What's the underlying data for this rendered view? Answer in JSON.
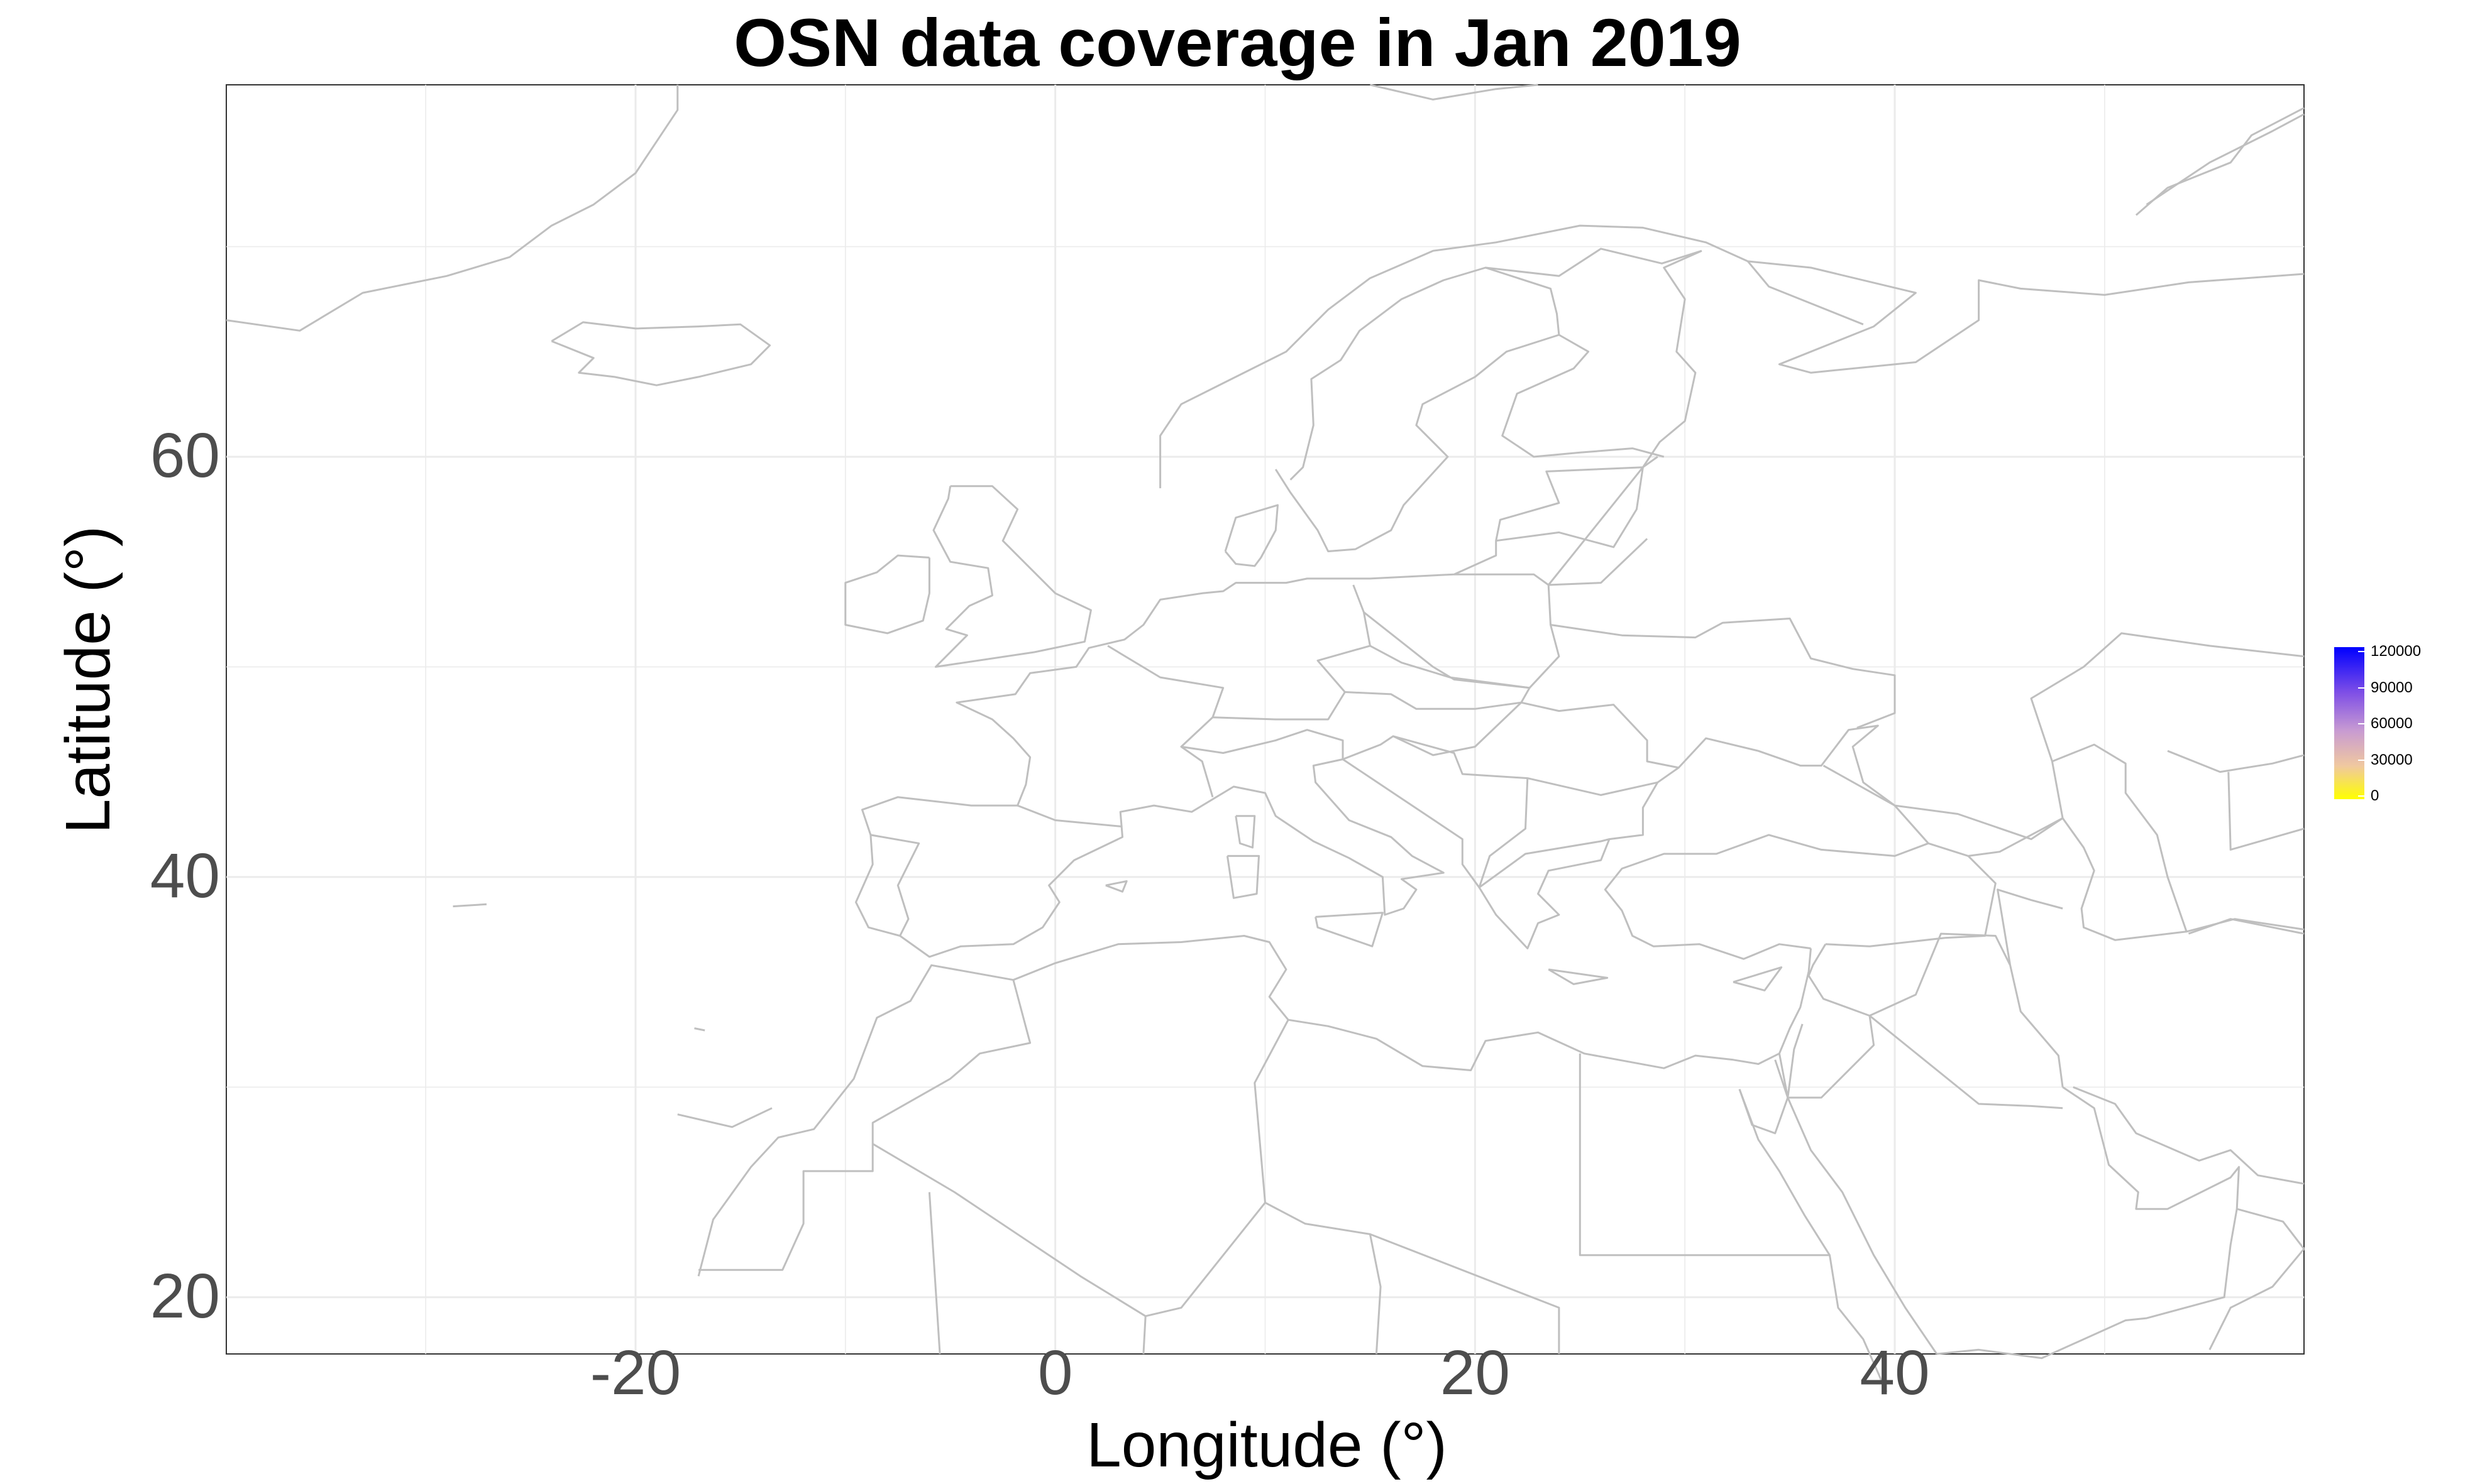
{
  "chart_data": {
    "type": "map",
    "title": "OSN data coverage in Jan 2019",
    "xlabel": "Longitude (°)",
    "ylabel": "Latitude (°)",
    "xlim": [
      -39.5,
      59.5
    ],
    "ylim": [
      17.3,
      77.7
    ],
    "x_ticks": [
      -20,
      0,
      20,
      40
    ],
    "y_ticks": [
      20,
      40,
      60
    ],
    "grid": true,
    "region": "Europe, North Africa and the Middle East",
    "coastline_color": "#bfbfbf",
    "legend": {
      "position": "right",
      "color_low": "#ffff00",
      "color_high": "#0000ff",
      "ticks": [
        0,
        30000,
        60000,
        90000,
        120000
      ]
    }
  }
}
